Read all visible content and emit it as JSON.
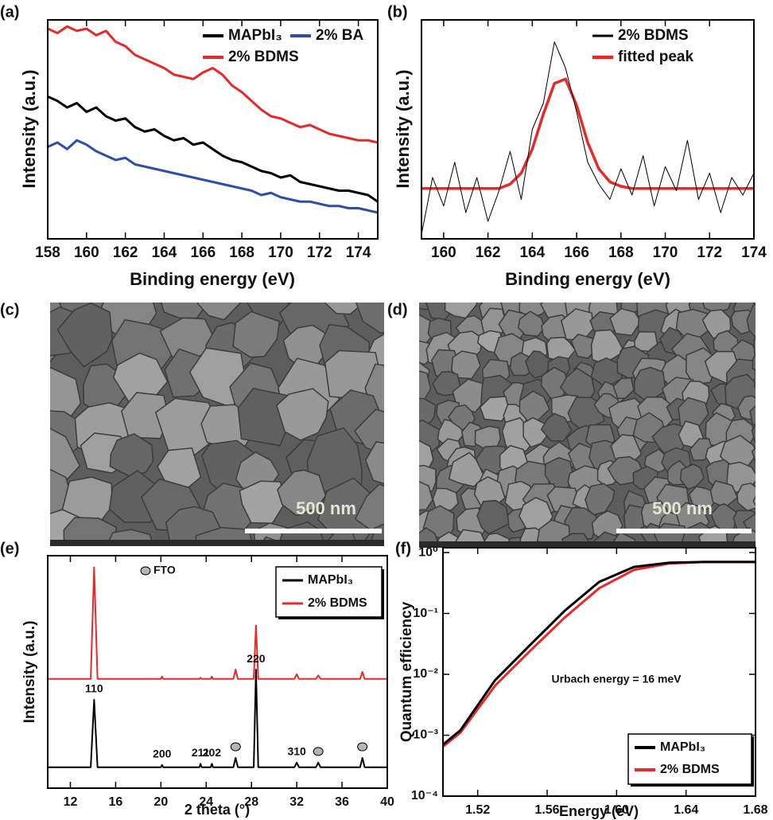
{
  "chart_data": [
    {
      "type": "line",
      "panel": "(a)",
      "x_label": "Binding energy (eV)",
      "y_label": "Intensity (a.u.)",
      "xlim": [
        158,
        175
      ],
      "xticks": [
        158,
        160,
        162,
        164,
        166,
        168,
        170,
        172,
        174
      ],
      "ylim": [
        0,
        100
      ],
      "x": [
        158,
        158.5,
        159,
        159.5,
        160,
        160.5,
        161,
        161.5,
        162,
        162.5,
        163,
        163.5,
        164,
        164.5,
        165,
        165.5,
        166,
        166.5,
        167,
        167.5,
        168,
        168.5,
        169,
        169.5,
        170,
        170.5,
        171,
        171.5,
        172,
        172.5,
        173,
        173.5,
        174,
        174.5,
        175
      ],
      "series": [
        {
          "name": "MAPbI₃",
          "color": "#000000",
          "values": [
            65,
            63,
            60,
            62,
            58,
            60,
            56,
            54,
            55,
            51,
            49,
            50,
            47,
            45,
            46,
            43,
            44,
            41,
            38,
            36,
            35,
            33,
            31,
            30,
            28,
            29,
            26,
            25,
            24,
            23,
            22,
            22,
            21,
            20,
            17
          ]
        },
        {
          "name": "2% BA",
          "color": "#2e4fa3",
          "values": [
            42,
            44,
            41,
            45,
            43,
            40,
            38,
            36,
            37,
            34,
            33,
            32,
            31,
            30,
            29,
            28,
            27,
            26,
            25,
            24,
            23,
            22,
            20,
            21,
            19,
            18,
            17,
            17,
            16,
            15,
            15,
            14,
            14,
            13,
            12
          ]
        },
        {
          "name": "2% BDMS",
          "color": "#e8292b",
          "values": [
            96,
            94,
            97,
            95,
            96,
            93,
            95,
            90,
            88,
            84,
            82,
            80,
            78,
            75,
            74,
            73,
            76,
            78,
            75,
            70,
            67,
            63,
            59,
            56,
            55,
            53,
            51,
            52,
            50,
            48,
            47,
            46,
            45,
            45,
            44
          ]
        }
      ]
    },
    {
      "type": "line",
      "panel": "(b)",
      "x_label": "Binding energy (eV)",
      "y_label": "Intensity (a.u.)",
      "xlim": [
        159,
        174
      ],
      "xticks": [
        160,
        162,
        164,
        166,
        168,
        170,
        172,
        174
      ],
      "ylim": [
        0,
        100
      ],
      "x": [
        159,
        159.5,
        160,
        160.5,
        161,
        161.5,
        162,
        162.5,
        163,
        163.5,
        164,
        164.5,
        165,
        165.5,
        166,
        166.5,
        167,
        167.5,
        168,
        168.5,
        169,
        169.5,
        170,
        170.5,
        171,
        171.5,
        172,
        172.5,
        173,
        173.5,
        174
      ],
      "series": [
        {
          "name": "2% BDMS",
          "color": "#000000",
          "values": [
            2,
            28,
            15,
            35,
            12,
            28,
            8,
            22,
            40,
            18,
            50,
            62,
            90,
            78,
            58,
            35,
            25,
            18,
            32,
            20,
            38,
            15,
            33,
            22,
            45,
            18,
            30,
            12,
            28,
            20,
            30
          ]
        },
        {
          "name": "fitted peak",
          "color": "#e8292b",
          "values": [
            23,
            23,
            23,
            23,
            23,
            23,
            23,
            23,
            25,
            30,
            41,
            57,
            71,
            73,
            61,
            44,
            32,
            26,
            24,
            23,
            23,
            23,
            23,
            23,
            23,
            23,
            23,
            23,
            23,
            23,
            23
          ]
        }
      ]
    },
    {
      "type": "line",
      "panel": "(e)",
      "x_label": "2 theta (°)",
      "y_label": "Intensity (a.u.)",
      "xlim": [
        10,
        40
      ],
      "xticks": [
        12,
        16,
        20,
        24,
        28,
        32,
        36,
        40
      ],
      "ylim": [
        0,
        100
      ],
      "x": [
        10,
        13.8,
        14.1,
        14.4,
        20,
        20.1,
        20.2,
        23.4,
        23.5,
        23.6,
        24.4,
        24.5,
        24.6,
        26.4,
        26.6,
        26.8,
        28.2,
        28.4,
        28.6,
        31.8,
        32,
        32.2,
        33.7,
        33.9,
        34.1,
        37.6,
        37.8,
        38,
        40
      ],
      "series": [
        {
          "name": "MAPbI₃",
          "color": "#000000",
          "values": [
            9,
            9,
            38,
            9,
            9,
            10,
            9,
            9,
            10.5,
            9,
            9,
            10.5,
            9,
            9,
            13,
            9,
            9,
            51,
            9,
            9,
            11,
            9,
            9,
            11,
            9,
            9,
            13,
            9,
            9
          ]
        },
        {
          "name": "2% BDMS",
          "color": "#e8292b",
          "values": [
            47,
            47,
            95,
            47,
            47,
            48,
            47,
            47,
            47.5,
            47,
            47,
            48,
            47,
            47,
            51,
            47,
            47,
            70,
            47,
            47,
            49,
            47,
            47,
            48.5,
            47,
            47,
            50,
            47,
            47
          ]
        }
      ],
      "peak_labels": [
        {
          "label": "110",
          "x": 14.1
        },
        {
          "label": "200",
          "x": 20.1
        },
        {
          "label": "211",
          "x": 23.5
        },
        {
          "label": "202",
          "x": 24.5
        },
        {
          "label": "220",
          "x": 28.4
        },
        {
          "label": "310",
          "x": 32
        }
      ],
      "fto_label": "FTO",
      "fto_positions": [
        26.6,
        33.9,
        37.8
      ]
    },
    {
      "type": "line",
      "panel": "(f)",
      "x_label": "Energy (eV)",
      "y_label": "Quantum efficiency",
      "log_y": true,
      "xlim": [
        1.5,
        1.68
      ],
      "xticks": [
        1.52,
        1.56,
        {
          "value": 1.6,
          "label": "1.60"
        },
        1.64,
        1.68
      ],
      "ylim": [
        0.0001,
        1.2
      ],
      "yticks": [
        {
          "value": 0.0001,
          "label": "10⁻⁴"
        },
        {
          "value": 0.001,
          "label": "10⁻³"
        },
        {
          "value": 0.01,
          "label": "10⁻²"
        },
        {
          "value": 0.1,
          "label": "10⁻¹"
        },
        {
          "value": 1,
          "label": "10⁰"
        }
      ],
      "x": [
        1.5,
        1.51,
        1.53,
        1.55,
        1.57,
        1.59,
        1.61,
        1.63,
        1.65,
        1.68
      ],
      "series": [
        {
          "name": "MAPbI₃",
          "color": "#000000",
          "values": [
            0.0007,
            0.0012,
            0.008,
            0.03,
            0.11,
            0.33,
            0.58,
            0.68,
            0.7,
            0.7
          ]
        },
        {
          "name": "2% BDMS",
          "color": "#e8292b",
          "values": [
            0.00065,
            0.0011,
            0.0065,
            0.024,
            0.085,
            0.26,
            0.52,
            0.66,
            0.7,
            0.7
          ]
        }
      ],
      "annotation": "Urbach energy = 16 meV"
    }
  ],
  "images": [
    {
      "panel": "(c)",
      "scale_bar": "500 nm"
    },
    {
      "panel": "(d)",
      "scale_bar": "500 nm"
    }
  ]
}
